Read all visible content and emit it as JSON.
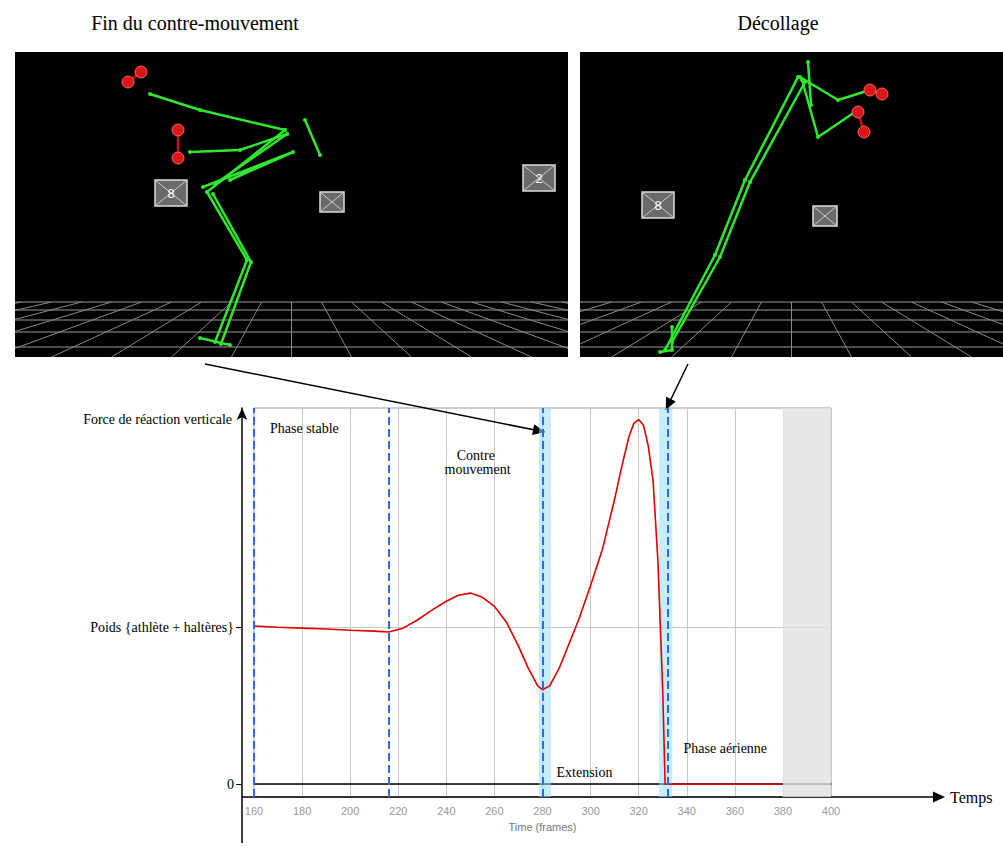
{
  "panels": [
    {
      "title": "Fin du contre-mouvement",
      "cameras": [
        "8",
        "2"
      ]
    },
    {
      "title": "Décollage",
      "cameras": [
        "8"
      ]
    }
  ],
  "chart_data": {
    "type": "line",
    "y_label": "Force de réaction verticale",
    "x_label": "Time (frames)",
    "x_arrow_label": "Temps",
    "color": "#e00000",
    "x": [
      160,
      170,
      180,
      190,
      200,
      210,
      216,
      222,
      228,
      234,
      240,
      245,
      250,
      255,
      260,
      265,
      270,
      274,
      278,
      280,
      283,
      287,
      290,
      295,
      300,
      305,
      310,
      313,
      316,
      318,
      320,
      322,
      324,
      326,
      328,
      330,
      331,
      335,
      340,
      345,
      350,
      355,
      360,
      365,
      370,
      375,
      379
    ],
    "values": [
      3.7,
      3.67,
      3.65,
      3.63,
      3.6,
      3.58,
      3.56,
      3.65,
      3.84,
      4.07,
      4.28,
      4.42,
      4.47,
      4.37,
      4.16,
      3.79,
      3.23,
      2.72,
      2.3,
      2.21,
      2.3,
      2.72,
      3.14,
      3.84,
      4.65,
      5.51,
      6.67,
      7.44,
      8.14,
      8.44,
      8.53,
      8.4,
      7.91,
      7.09,
      5.23,
      2.21,
      0,
      0,
      0,
      0,
      0,
      0,
      0,
      0,
      0,
      0,
      0
    ],
    "xlim": [
      160,
      400
    ],
    "xticks": [
      160,
      180,
      200,
      220,
      240,
      260,
      280,
      300,
      320,
      340,
      360,
      380,
      400
    ],
    "ylim": [
      -0.3,
      8.8
    ],
    "yticks": [
      {
        "value": 0,
        "label": "0"
      },
      {
        "value": 3.67,
        "label": "Poids {athlète + haltères}"
      }
    ],
    "grid": true,
    "phases": [
      {
        "label": "Phase stable",
        "start": 160,
        "end": 216
      },
      {
        "label": "Contre mouvement",
        "start": 216,
        "end": 280
      },
      {
        "label": "Extension",
        "start": 280,
        "end": 332
      },
      {
        "label": "Phase aérienne",
        "start": 332,
        "end": 380
      }
    ],
    "events": [
      {
        "start": 278.5,
        "end": 283.5
      },
      {
        "start": 328.5,
        "end": 334
      }
    ],
    "greyed_range": [
      380,
      400
    ]
  }
}
